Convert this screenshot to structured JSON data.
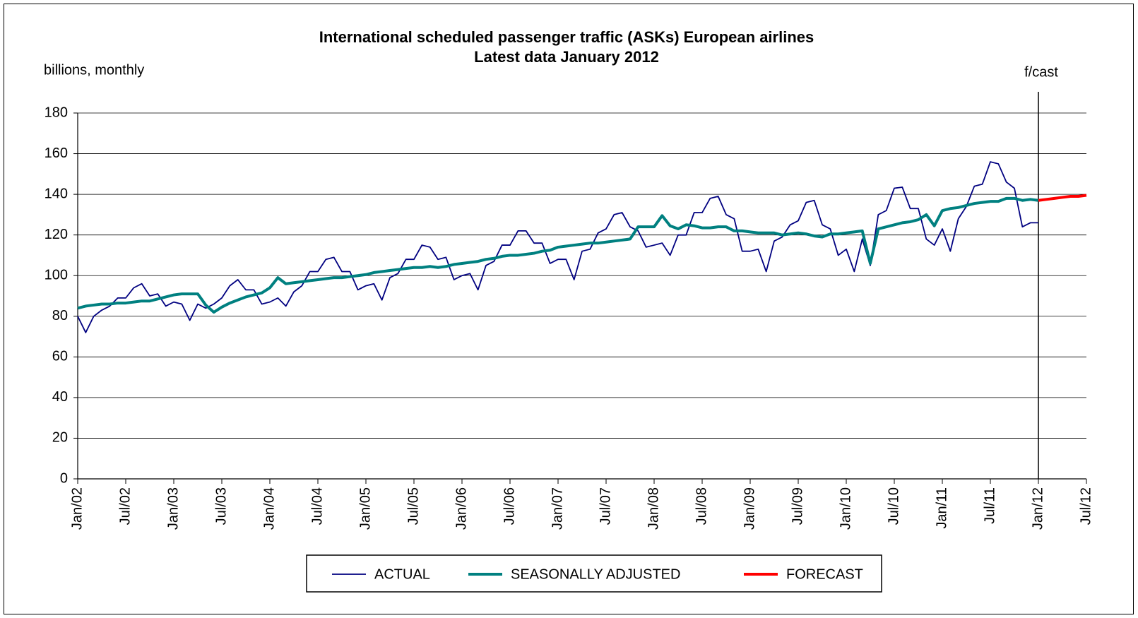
{
  "chart_data": {
    "type": "line",
    "title": "International scheduled passenger traffic (ASKs) European airlines",
    "subtitle": "Latest data January 2012",
    "ylabel": "billions, monthly",
    "annotation": {
      "text": "f/cast",
      "x": "Jan/12"
    },
    "categories": [
      "Jan/02",
      null,
      null,
      null,
      null,
      null,
      "Jul/02",
      null,
      null,
      null,
      null,
      null,
      "Jan/03",
      null,
      null,
      null,
      null,
      null,
      "Jul/03",
      null,
      null,
      null,
      null,
      null,
      "Jan/04",
      null,
      null,
      null,
      null,
      null,
      "Jul/04",
      null,
      null,
      null,
      null,
      null,
      "Jan/05",
      null,
      null,
      null,
      null,
      null,
      "Jul/05",
      null,
      null,
      null,
      null,
      null,
      "Jan/06",
      null,
      null,
      null,
      null,
      null,
      "Jul/06",
      null,
      null,
      null,
      null,
      null,
      "Jan/07",
      null,
      null,
      null,
      null,
      null,
      "Jul/07",
      null,
      null,
      null,
      null,
      null,
      "Jan/08",
      null,
      null,
      null,
      null,
      null,
      "Jul/08",
      null,
      null,
      null,
      null,
      null,
      "Jan/09",
      null,
      null,
      null,
      null,
      null,
      "Jul/09",
      null,
      null,
      null,
      null,
      null,
      "Jan/10",
      null,
      null,
      null,
      null,
      null,
      "Jul/10",
      null,
      null,
      null,
      null,
      null,
      "Jan/11",
      null,
      null,
      null,
      null,
      null,
      "Jul/11",
      null,
      null,
      null,
      null,
      null,
      "Jan/12",
      null,
      null,
      null,
      null,
      null,
      "Jul/12"
    ],
    "series": [
      {
        "name": "ACTUAL",
        "color": "#000080",
        "line_width": 1.8,
        "values": [
          80,
          72,
          80,
          83,
          85,
          89,
          89,
          94,
          96,
          90,
          91,
          85,
          87,
          86,
          78,
          86,
          84,
          86,
          89,
          95,
          98,
          93,
          93,
          86,
          87,
          89,
          85,
          92,
          95,
          102,
          102,
          108,
          109,
          102,
          102,
          93,
          95,
          96,
          88,
          99,
          101,
          108,
          108,
          115,
          114,
          108,
          109,
          98,
          100,
          101,
          93,
          105,
          107,
          115,
          115,
          122,
          122,
          116,
          116,
          106,
          108,
          108,
          98,
          112,
          113,
          121,
          123,
          130,
          131,
          124,
          122,
          114,
          115,
          116,
          110,
          120,
          120,
          131,
          131,
          138,
          139,
          130,
          128,
          112,
          112,
          113,
          102,
          117,
          119,
          125,
          127,
          136,
          137,
          125,
          123,
          110,
          113,
          102,
          118,
          105,
          130,
          132,
          143,
          143.5,
          133,
          133,
          118,
          115,
          123,
          112,
          128,
          134,
          144,
          145,
          156,
          155,
          146,
          143,
          124,
          126,
          126,
          null,
          null,
          null,
          null,
          null,
          null
        ]
      },
      {
        "name": "SEASONALLY ADJUSTED",
        "color": "#008080",
        "line_width": 4,
        "values": [
          84,
          85,
          85.5,
          86,
          86,
          86.5,
          86.5,
          87,
          87.5,
          87.5,
          88.5,
          89.5,
          90.5,
          91,
          91,
          91,
          85.5,
          82,
          84.5,
          86.5,
          88,
          89.5,
          90.5,
          91.5,
          94,
          99,
          96,
          96.5,
          97,
          97.5,
          98,
          98.5,
          99,
          99,
          99.5,
          100,
          100.5,
          101.5,
          102,
          102.5,
          103,
          103.5,
          104,
          104,
          104.5,
          104,
          104.5,
          105.5,
          106,
          106.5,
          107,
          108,
          108.5,
          109.5,
          110,
          110,
          110.5,
          111,
          112,
          112.5,
          114,
          114.5,
          115,
          115.5,
          116,
          116,
          116.5,
          117,
          117.5,
          118,
          124,
          124,
          124,
          129.5,
          124.5,
          123,
          125,
          124.5,
          123.5,
          123.5,
          124,
          124,
          122,
          122,
          121.5,
          121,
          121,
          121,
          120,
          120.5,
          121,
          120.5,
          119.5,
          119,
          120.5,
          120.5,
          121,
          121.5,
          122,
          106,
          123,
          124,
          125,
          126,
          126.5,
          127.5,
          130,
          124.5,
          132,
          133,
          133.5,
          134.5,
          135.5,
          136,
          136.5,
          136.5,
          138,
          138,
          137,
          137.5,
          137,
          null,
          null,
          null,
          null,
          null,
          null
        ]
      },
      {
        "name": "FORECAST",
        "color": "#ff0000",
        "line_width": 4,
        "values": [
          null,
          null,
          null,
          null,
          null,
          null,
          null,
          null,
          null,
          null,
          null,
          null,
          null,
          null,
          null,
          null,
          null,
          null,
          null,
          null,
          null,
          null,
          null,
          null,
          null,
          null,
          null,
          null,
          null,
          null,
          null,
          null,
          null,
          null,
          null,
          null,
          null,
          null,
          null,
          null,
          null,
          null,
          null,
          null,
          null,
          null,
          null,
          null,
          null,
          null,
          null,
          null,
          null,
          null,
          null,
          null,
          null,
          null,
          null,
          null,
          null,
          null,
          null,
          null,
          null,
          null,
          null,
          null,
          null,
          null,
          null,
          null,
          null,
          null,
          null,
          null,
          null,
          null,
          null,
          null,
          null,
          null,
          null,
          null,
          null,
          null,
          null,
          null,
          null,
          null,
          null,
          null,
          null,
          null,
          null,
          null,
          null,
          null,
          null,
          null,
          null,
          null,
          null,
          null,
          null,
          null,
          null,
          null,
          null,
          null,
          null,
          null,
          null,
          null,
          null,
          null,
          null,
          null,
          null,
          null,
          137,
          137.5,
          138,
          138.5,
          139,
          139,
          139.5
        ]
      }
    ],
    "ylim": [
      0,
      180
    ],
    "yticks": [
      0,
      20,
      40,
      60,
      80,
      100,
      120,
      140,
      160,
      180
    ],
    "grid": true,
    "legend": "bottom"
  }
}
